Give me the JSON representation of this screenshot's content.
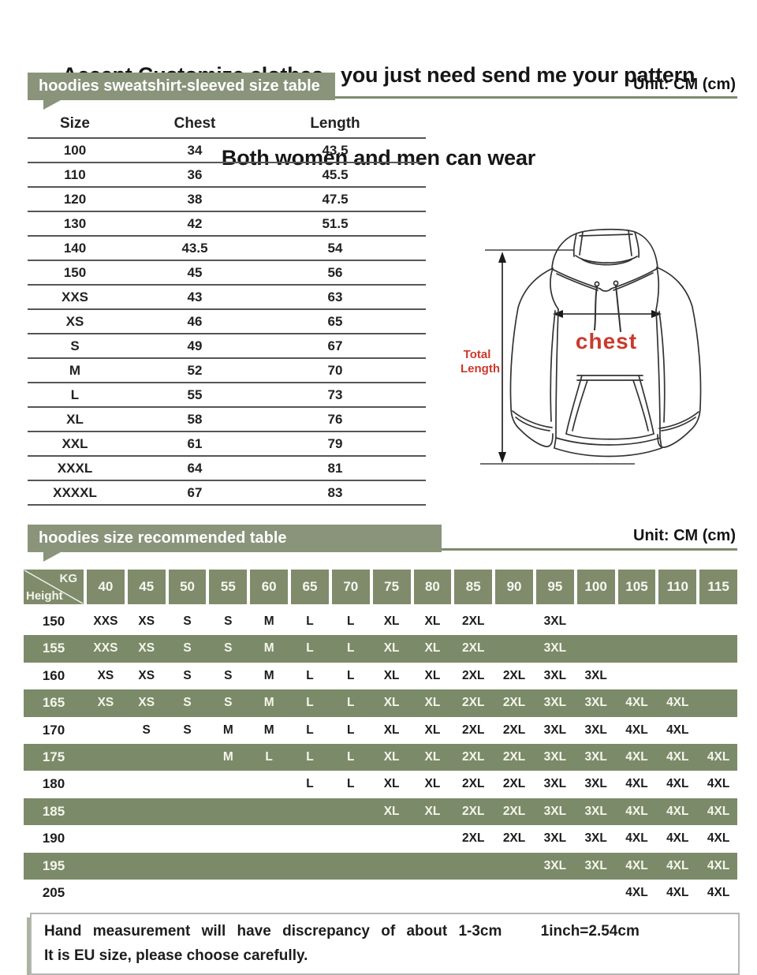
{
  "header": {
    "title_line1": "Accept Customize clothes,  you just need send me your pattern",
    "title_line2": "Both women and men can wear"
  },
  "section1": {
    "banner": "hoodies sweatshirt-sleeved size table",
    "unit": "Unit: CM (cm)"
  },
  "size_table": {
    "columns": [
      "Size",
      "Chest",
      "Length"
    ],
    "rows": [
      [
        "100",
        "34",
        "43.5"
      ],
      [
        "110",
        "36",
        "45.5"
      ],
      [
        "120",
        "38",
        "47.5"
      ],
      [
        "130",
        "42",
        "51.5"
      ],
      [
        "140",
        "43.5",
        "54"
      ],
      [
        "150",
        "45",
        "56"
      ],
      [
        "XXS",
        "43",
        "63"
      ],
      [
        "XS",
        "46",
        "65"
      ],
      [
        "S",
        "49",
        "67"
      ],
      [
        "M",
        "52",
        "70"
      ],
      [
        "L",
        "55",
        "73"
      ],
      [
        "XL",
        "58",
        "76"
      ],
      [
        "XXL",
        "61",
        "79"
      ],
      [
        "XXXL",
        "64",
        "81"
      ],
      [
        "XXXXL",
        "67",
        "83"
      ]
    ]
  },
  "diagram": {
    "total_length_line1": "Total",
    "total_length_line2": "Length",
    "chest_label": "chest"
  },
  "section2": {
    "banner": "hoodies size recommended table",
    "unit": "Unit: CM (cm)"
  },
  "reco_table": {
    "corner_top": "KG",
    "corner_bottom": "Height",
    "weights": [
      "40",
      "45",
      "50",
      "55",
      "60",
      "65",
      "70",
      "75",
      "80",
      "85",
      "90",
      "95",
      "100",
      "105",
      "110",
      "115"
    ],
    "rows": [
      {
        "height": "150",
        "cells": [
          "XXS",
          "XS",
          "S",
          "S",
          "M",
          "L",
          "L",
          "XL",
          "XL",
          "2XL",
          "",
          "3XL",
          "",
          "",
          "",
          ""
        ]
      },
      {
        "height": "155",
        "cells": [
          "XXS",
          "XS",
          "S",
          "S",
          "M",
          "L",
          "L",
          "XL",
          "XL",
          "2XL",
          "",
          "3XL",
          "",
          "",
          "",
          ""
        ]
      },
      {
        "height": "160",
        "cells": [
          "XS",
          "XS",
          "S",
          "S",
          "M",
          "L",
          "L",
          "XL",
          "XL",
          "2XL",
          "2XL",
          "3XL",
          "3XL",
          "",
          "",
          ""
        ]
      },
      {
        "height": "165",
        "cells": [
          "XS",
          "XS",
          "S",
          "S",
          "M",
          "L",
          "L",
          "XL",
          "XL",
          "2XL",
          "2XL",
          "3XL",
          "3XL",
          "4XL",
          "4XL",
          ""
        ]
      },
      {
        "height": "170",
        "cells": [
          "",
          "S",
          "S",
          "M",
          "M",
          "L",
          "L",
          "XL",
          "XL",
          "2XL",
          "2XL",
          "3XL",
          "3XL",
          "4XL",
          "4XL",
          ""
        ]
      },
      {
        "height": "175",
        "cells": [
          "",
          "",
          "",
          "M",
          "L",
          "L",
          "L",
          "XL",
          "XL",
          "2XL",
          "2XL",
          "3XL",
          "3XL",
          "4XL",
          "4XL",
          "4XL"
        ]
      },
      {
        "height": "180",
        "cells": [
          "",
          "",
          "",
          "",
          "",
          "L",
          "L",
          "XL",
          "XL",
          "2XL",
          "2XL",
          "3XL",
          "3XL",
          "4XL",
          "4XL",
          "4XL"
        ]
      },
      {
        "height": "185",
        "cells": [
          "",
          "",
          "",
          "",
          "",
          "",
          "",
          "XL",
          "XL",
          "2XL",
          "2XL",
          "3XL",
          "3XL",
          "4XL",
          "4XL",
          "4XL"
        ]
      },
      {
        "height": "190",
        "cells": [
          "",
          "",
          "",
          "",
          "",
          "",
          "",
          "",
          "",
          "2XL",
          "2XL",
          "3XL",
          "3XL",
          "4XL",
          "4XL",
          "4XL"
        ]
      },
      {
        "height": "195",
        "cells": [
          "",
          "",
          "",
          "",
          "",
          "",
          "",
          "",
          "",
          "",
          "",
          "3XL",
          "3XL",
          "4XL",
          "4XL",
          "4XL"
        ]
      },
      {
        "height": "205",
        "cells": [
          "",
          "",
          "",
          "",
          "",
          "",
          "",
          "",
          "",
          "",
          "",
          "",
          "",
          "4XL",
          "4XL",
          "4XL"
        ]
      }
    ]
  },
  "footer": {
    "line1_left": "Hand measurement will have discrepancy of about 1-3cm",
    "line1_right": "1inch=2.54cm",
    "line2": "It is EU size, please choose carefully."
  },
  "colors": {
    "banner_green": "#8a947b",
    "cell_green": "#7b8a68",
    "line_green": "#7d8a6e",
    "accent_red": "#cb392c"
  }
}
